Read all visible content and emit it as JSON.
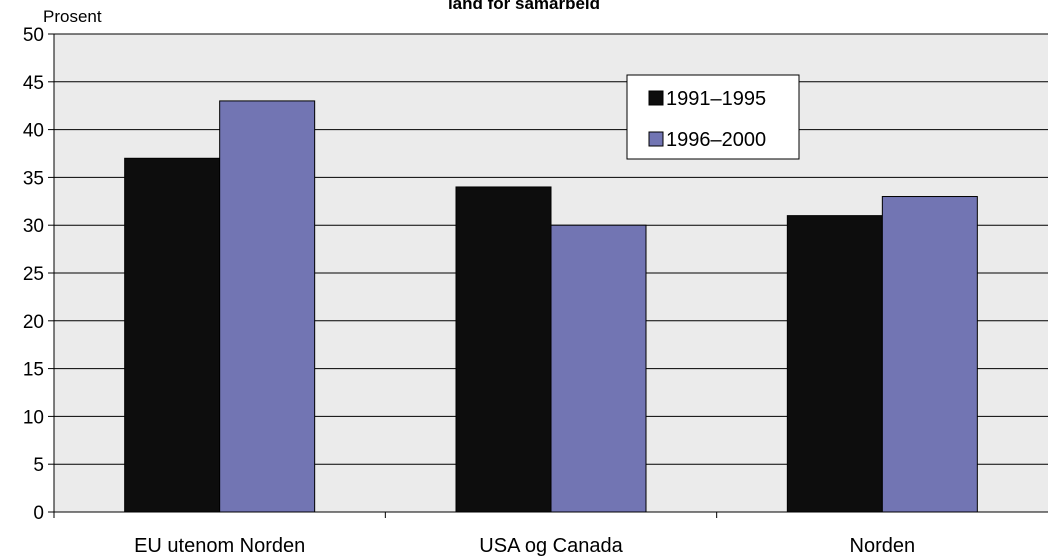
{
  "chart_data": {
    "type": "bar",
    "title": "land for samarbeid",
    "ylabel": "Prosent",
    "xlabel": "",
    "ylim": [
      0,
      50
    ],
    "yticks": [
      0,
      5,
      10,
      15,
      20,
      25,
      30,
      35,
      40,
      45,
      50
    ],
    "grid": true,
    "legend_position": "top-right",
    "categories": [
      "EU utenom Norden",
      "USA og Canada",
      "Norden"
    ],
    "series": [
      {
        "name": "1991–1995",
        "color": "#0d0d0d",
        "values": [
          37,
          34,
          31
        ]
      },
      {
        "name": "1996–2000",
        "color": "#7275b3",
        "values": [
          43,
          30,
          33
        ]
      }
    ],
    "colors": {
      "plot_background": "#ebebeb",
      "gridline": "#000000"
    }
  }
}
